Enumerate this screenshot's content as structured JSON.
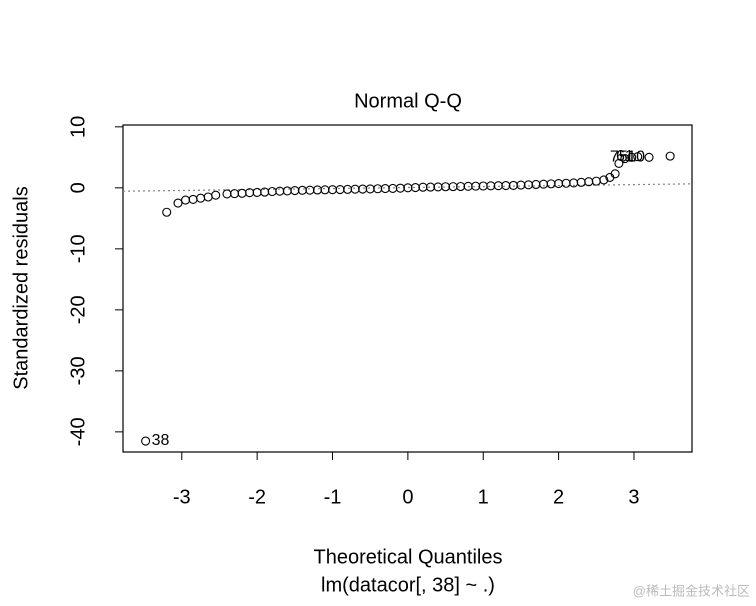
{
  "chart_data": {
    "type": "scatter",
    "title": "Normal Q-Q",
    "x_label": "Theoretical Quantiles",
    "y_label": "Standardized residuals",
    "subtitle": "lm(datacor[, 38] ~ .)",
    "watermark": "@稀土掘金技术社区",
    "x": [
      -3.48,
      -3.2,
      -3.05,
      -2.95,
      -2.85,
      -2.75,
      -2.65,
      -2.55,
      -2.4,
      -2.3,
      -2.2,
      -2.1,
      -2.0,
      -1.9,
      -1.8,
      -1.7,
      -1.6,
      -1.5,
      -1.4,
      -1.3,
      -1.2,
      -1.1,
      -1.0,
      -0.9,
      -0.8,
      -0.7,
      -0.6,
      -0.5,
      -0.4,
      -0.3,
      -0.2,
      -0.1,
      0,
      0.1,
      0.2,
      0.3,
      0.4,
      0.5,
      0.6,
      0.7,
      0.8,
      0.9,
      1.0,
      1.1,
      1.2,
      1.3,
      1.4,
      1.5,
      1.6,
      1.7,
      1.8,
      1.9,
      2.0,
      2.1,
      2.2,
      2.3,
      2.4,
      2.5,
      2.6,
      2.68,
      2.75,
      2.8,
      2.88,
      2.97,
      3.05,
      3.2,
      3.48
    ],
    "values": [
      -41.5,
      -4.0,
      -2.5,
      -2.0,
      -1.9,
      -1.7,
      -1.5,
      -1.2,
      -1.0,
      -0.95,
      -0.9,
      -0.8,
      -0.75,
      -0.7,
      -0.6,
      -0.55,
      -0.5,
      -0.45,
      -0.4,
      -0.38,
      -0.35,
      -0.33,
      -0.3,
      -0.28,
      -0.25,
      -0.22,
      -0.2,
      -0.18,
      -0.15,
      -0.12,
      -0.1,
      -0.05,
      0,
      0.05,
      0.1,
      0.12,
      0.15,
      0.18,
      0.2,
      0.22,
      0.25,
      0.28,
      0.3,
      0.33,
      0.35,
      0.38,
      0.4,
      0.45,
      0.5,
      0.55,
      0.6,
      0.65,
      0.7,
      0.75,
      0.8,
      0.9,
      1.0,
      1.1,
      1.3,
      1.7,
      2.3,
      4.0,
      4.8,
      5.0,
      5.1,
      5.0,
      5.2
    ],
    "point_labels": [
      "38",
      null,
      null,
      null,
      null,
      null,
      null,
      null,
      null,
      null,
      null,
      null,
      null,
      null,
      null,
      null,
      null,
      null,
      null,
      null,
      null,
      null,
      null,
      null,
      null,
      null,
      null,
      null,
      null,
      null,
      null,
      null,
      null,
      null,
      null,
      null,
      null,
      null,
      null,
      null,
      null,
      null,
      null,
      null,
      null,
      null,
      null,
      null,
      null,
      null,
      null,
      null,
      null,
      null,
      null,
      null,
      null,
      null,
      null,
      null,
      null,
      null,
      null,
      "75",
      "61",
      "10",
      null
    ],
    "color": "#000000",
    "qq_line": {
      "intercept": 0.05,
      "slope": 0.16,
      "color": "#808080"
    },
    "xlim": [
      -3.78,
      3.77
    ],
    "xticks": [
      -3,
      -2,
      -1,
      0,
      1,
      2,
      3
    ],
    "ylim": [
      -43.3,
      10.3
    ],
    "yticks": [
      -40,
      -30,
      -20,
      -10,
      0,
      10
    ]
  }
}
